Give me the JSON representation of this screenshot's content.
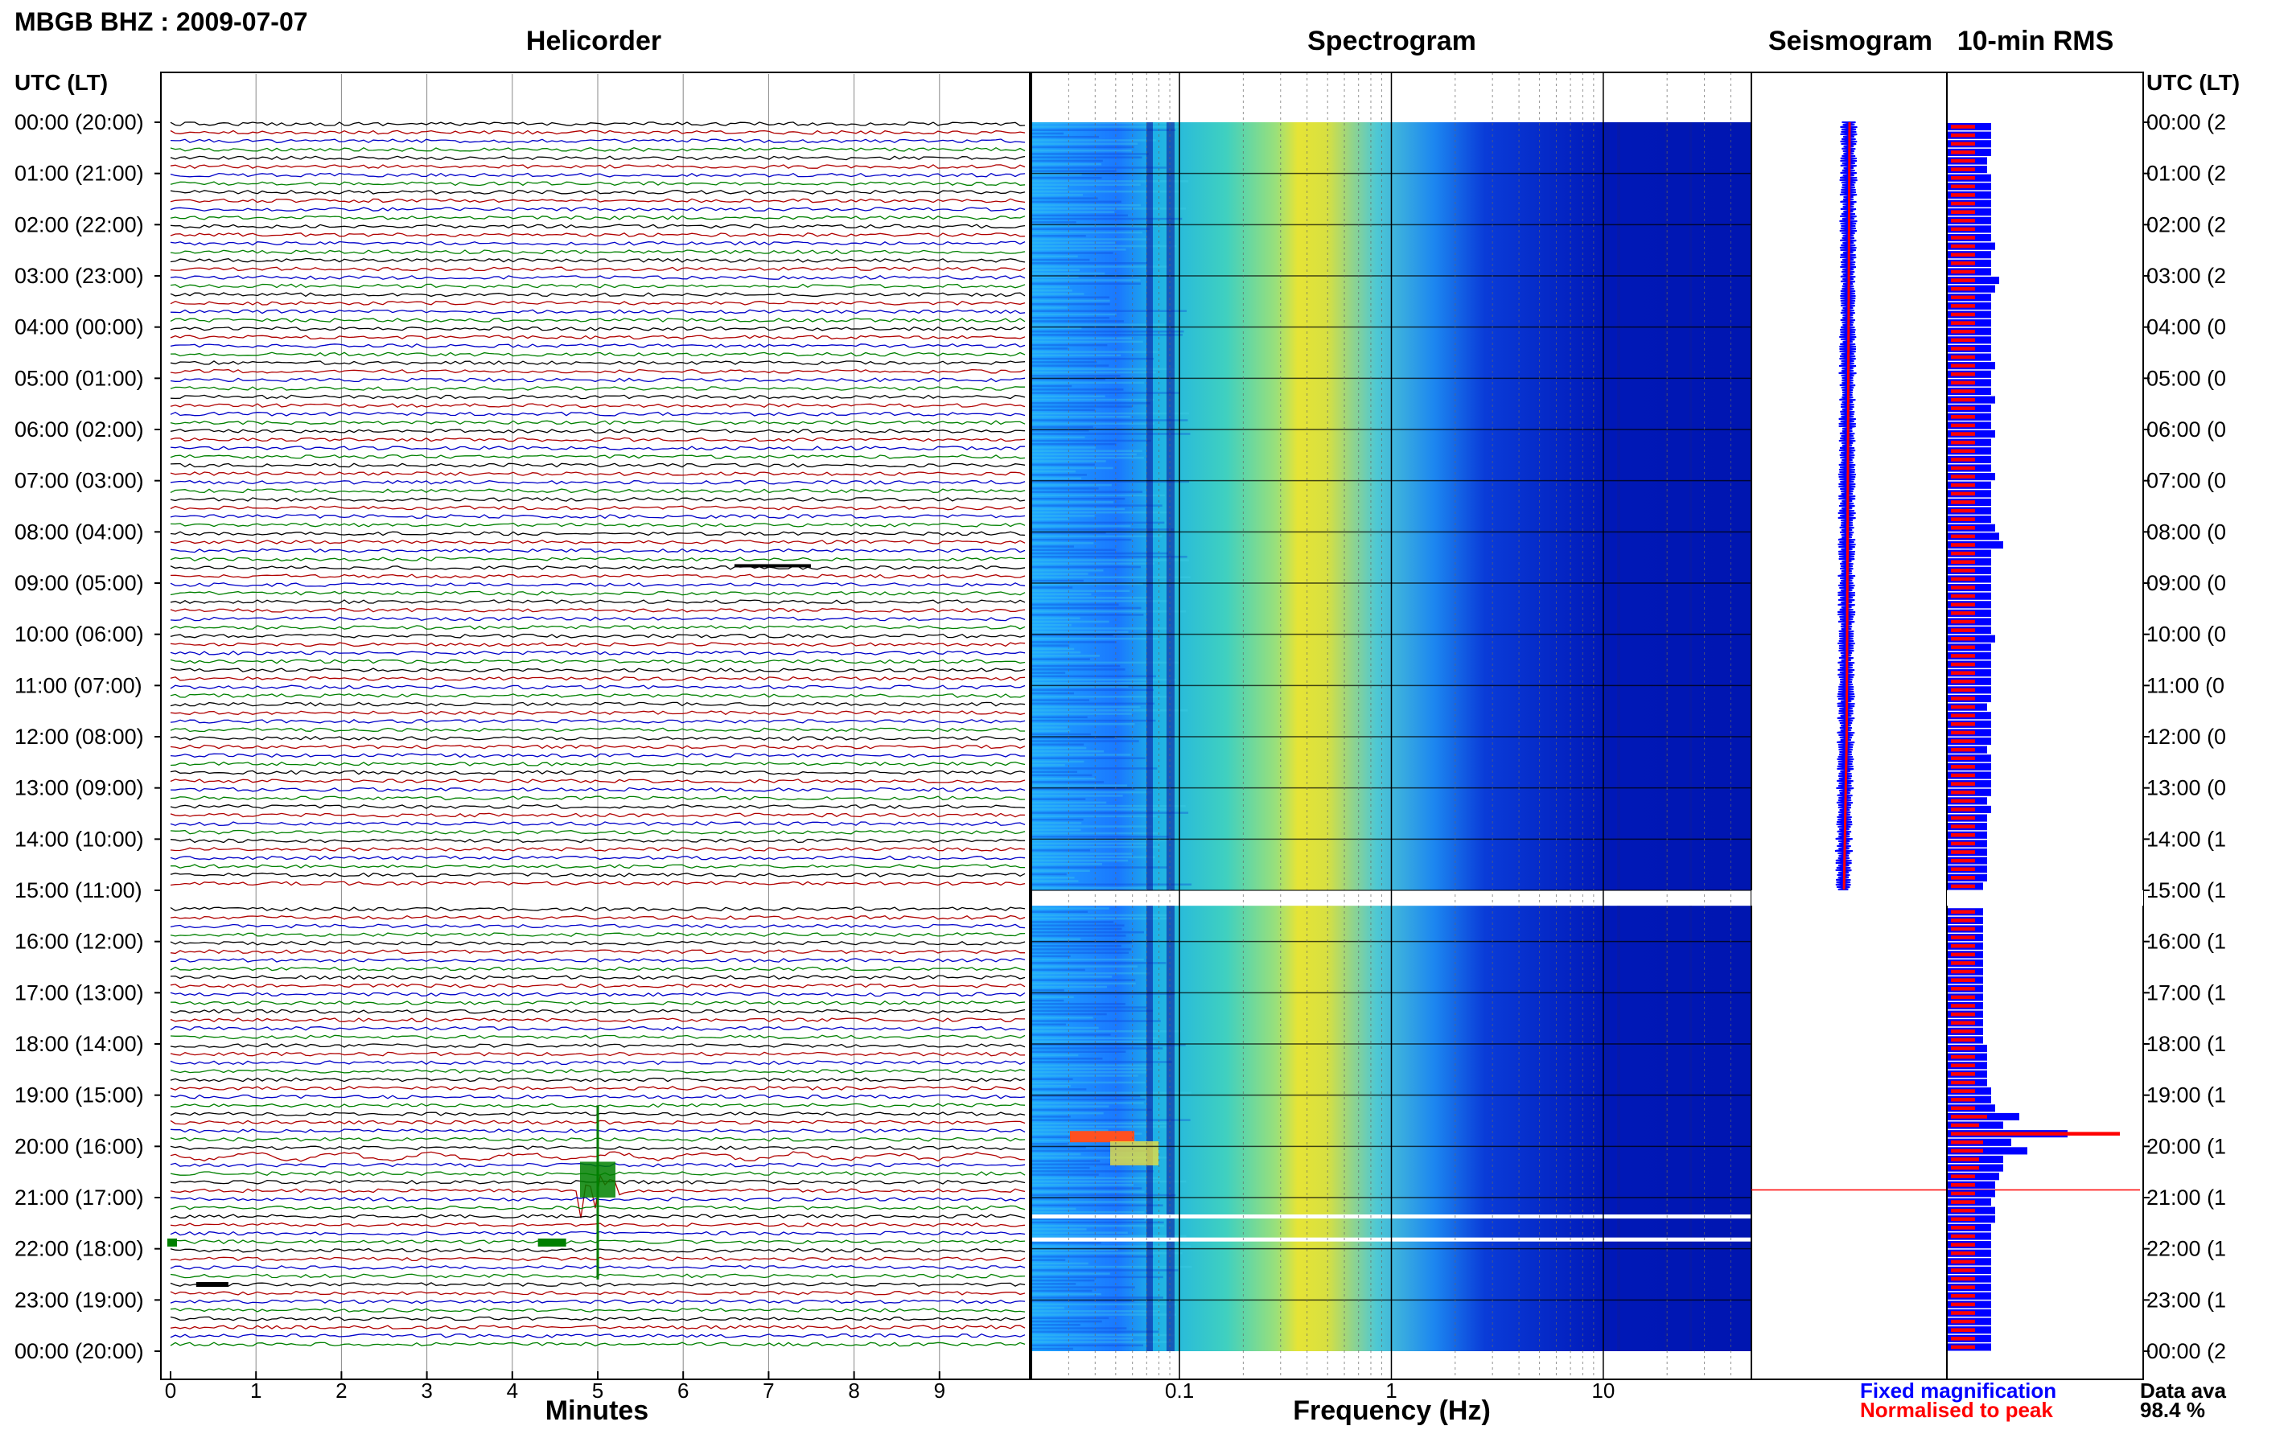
{
  "chart_data": {
    "type": "heatmap",
    "station_title": "MBGB BHZ : 2009-07-07",
    "panels": {
      "helicorder": {
        "title": "Helicorder",
        "xlabel": "Minutes",
        "xticks": [
          0,
          1,
          2,
          3,
          4,
          5,
          6,
          7,
          8,
          9
        ],
        "xlim": [
          0,
          10
        ]
      },
      "spectrogram": {
        "title": "Spectrogram",
        "xlabel": "Frequency (Hz)",
        "xticks": [
          "0.1",
          "1",
          "10"
        ],
        "xscale": "log",
        "xlim": [
          0.02,
          50
        ]
      },
      "seismogram": {
        "title": "Seismogram"
      },
      "rms": {
        "title": "10-min RMS"
      }
    },
    "time_axis": {
      "left_header": "UTC (LT)",
      "right_header": "UTC (LT)",
      "labels": [
        "00:00 (20:00)",
        "01:00 (21:00)",
        "02:00 (22:00)",
        "03:00 (23:00)",
        "04:00 (00:00)",
        "05:00 (01:00)",
        "06:00 (02:00)",
        "07:00 (03:00)",
        "08:00 (04:00)",
        "09:00 (05:00)",
        "10:00 (06:00)",
        "11:00 (07:00)",
        "12:00 (08:00)",
        "13:00 (09:00)",
        "14:00 (10:00)",
        "15:00 (11:00)",
        "16:00 (12:00)",
        "17:00 (13:00)",
        "18:00 (14:00)",
        "19:00 (15:00)",
        "20:00 (16:00)",
        "21:00 (17:00)",
        "22:00 (18:00)",
        "23:00 (19:00)",
        "00:00 (20:00)"
      ]
    },
    "data_gap_utc_hours": [
      15.0,
      15.3
    ],
    "notable_events": [
      {
        "utc": "20:50",
        "minute": 5.0,
        "description_label": ""
      }
    ],
    "rms_10min_blue_relative": [
      0.55,
      0.55,
      0.55,
      0.55,
      0.5,
      0.5,
      0.55,
      0.55,
      0.55,
      0.55,
      0.55,
      0.55,
      0.55,
      0.55,
      0.6,
      0.55,
      0.55,
      0.55,
      0.65,
      0.6,
      0.55,
      0.55,
      0.55,
      0.55,
      0.55,
      0.55,
      0.55,
      0.55,
      0.6,
      0.55,
      0.55,
      0.55,
      0.6,
      0.55,
      0.55,
      0.55,
      0.6,
      0.55,
      0.55,
      0.55,
      0.55,
      0.6,
      0.55,
      0.55,
      0.55,
      0.55,
      0.55,
      0.6,
      0.65,
      0.7,
      0.55,
      0.55,
      0.55,
      0.55,
      0.55,
      0.55,
      0.55,
      0.55,
      0.55,
      0.55,
      0.6,
      0.55,
      0.55,
      0.55,
      0.55,
      0.55,
      0.55,
      0.55,
      0.5,
      0.55,
      0.55,
      0.55,
      0.55,
      0.5,
      0.55,
      0.55,
      0.55,
      0.55,
      0.55,
      0.5,
      0.55,
      0.5,
      0.5,
      0.5,
      0.5,
      0.5,
      0.5,
      0.5,
      0.5,
      0.45,
      0.5,
      0.45,
      0.45,
      0.45,
      0.45,
      0.45,
      0.45,
      0.45,
      0.45,
      0.45,
      0.45,
      0.45,
      0.45,
      0.45,
      0.45,
      0.45,
      0.45,
      0.45,
      0.5,
      0.5,
      0.5,
      0.5,
      0.5,
      0.55,
      0.55,
      0.6,
      0.9,
      0.7,
      1.5,
      0.8,
      1.0,
      0.7,
      0.7,
      0.65,
      0.6,
      0.6,
      0.55,
      0.6,
      0.6,
      0.55,
      0.55,
      0.55,
      0.55,
      0.55,
      0.55,
      0.55,
      0.55,
      0.55,
      0.55,
      0.55,
      0.55,
      0.55,
      0.55,
      0.55
    ],
    "rms_10min_red_relative": [
      0.3,
      0.3,
      0.3,
      0.3,
      0.3,
      0.3,
      0.3,
      0.3,
      0.3,
      0.3,
      0.3,
      0.3,
      0.3,
      0.3,
      0.3,
      0.3,
      0.3,
      0.3,
      0.3,
      0.3,
      0.3,
      0.3,
      0.3,
      0.3,
      0.3,
      0.3,
      0.3,
      0.3,
      0.3,
      0.3,
      0.3,
      0.3,
      0.3,
      0.3,
      0.3,
      0.3,
      0.3,
      0.3,
      0.3,
      0.3,
      0.3,
      0.3,
      0.3,
      0.3,
      0.3,
      0.3,
      0.3,
      0.3,
      0.3,
      0.3,
      0.3,
      0.3,
      0.3,
      0.3,
      0.3,
      0.3,
      0.3,
      0.3,
      0.3,
      0.3,
      0.3,
      0.3,
      0.3,
      0.3,
      0.3,
      0.3,
      0.3,
      0.3,
      0.3,
      0.3,
      0.3,
      0.3,
      0.3,
      0.3,
      0.3,
      0.3,
      0.3,
      0.3,
      0.3,
      0.3,
      0.3,
      0.3,
      0.3,
      0.3,
      0.3,
      0.3,
      0.3,
      0.3,
      0.3,
      0.3,
      0.3,
      0.3,
      0.3,
      0.3,
      0.3,
      0.3,
      0.3,
      0.3,
      0.3,
      0.3,
      0.3,
      0.3,
      0.3,
      0.3,
      0.3,
      0.3,
      0.3,
      0.3,
      0.3,
      0.3,
      0.3,
      0.3,
      0.3,
      0.3,
      0.3,
      0.3,
      0.45,
      0.35,
      2.1,
      0.4,
      0.4,
      0.35,
      0.35,
      0.3,
      0.3,
      0.3,
      0.3,
      0.3,
      0.3,
      0.3,
      0.3,
      0.3,
      0.3,
      0.3,
      0.3,
      0.3,
      0.3,
      0.3,
      0.3,
      0.3,
      0.3,
      0.3,
      0.3,
      0.3
    ],
    "legend": {
      "fixed": "Fixed magnification",
      "normalised": "Normalised to peak",
      "fixed_color": "#0000ff",
      "normalised_color": "#ff0000"
    },
    "availability_label": "Data ava",
    "availability_value": "98.4 %",
    "trace_colors": [
      "#000000",
      "#b00000",
      "#0000c8",
      "#008000"
    ]
  }
}
